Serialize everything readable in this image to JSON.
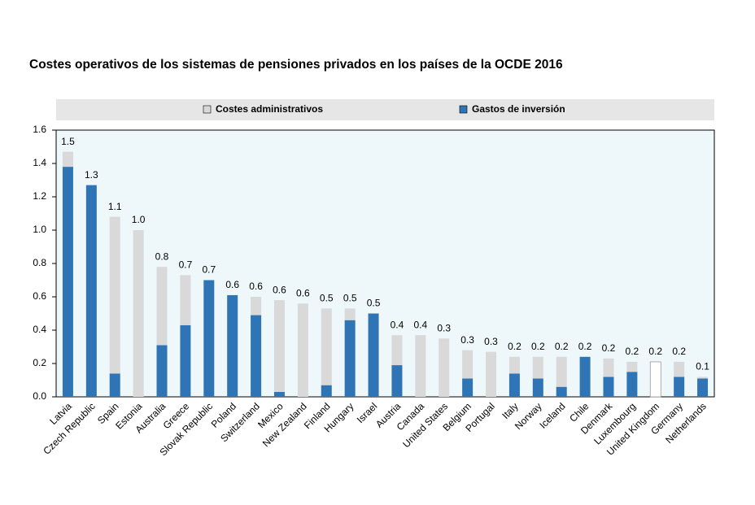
{
  "chart_data": {
    "type": "bar",
    "stacked": true,
    "title": "Costes operativos de los sistemas de pensiones privados en los países de la OCDE 2016",
    "categories": [
      "Latvia",
      "Czech Republic",
      "Spain",
      "Estonia",
      "Australia",
      "Greece",
      "Slovak Republic",
      "Poland",
      "Switzerland",
      "Mexico",
      "New Zealand",
      "Finland",
      "Hungary",
      "Israel",
      "Austria",
      "Canada",
      "United States",
      "Belgium",
      "Portugal",
      "Italy",
      "Norway",
      "Iceland",
      "Chile",
      "Denmark",
      "Luxembourg",
      "United Kingdom",
      "Germany",
      "Netherlands"
    ],
    "series": [
      {
        "name": "Gastos de inversión",
        "color": "#2f75b5",
        "values": [
          1.38,
          1.27,
          0.14,
          null,
          0.31,
          0.43,
          0.7,
          0.61,
          0.49,
          0.03,
          null,
          0.07,
          0.46,
          0.5,
          0.19,
          null,
          null,
          0.11,
          null,
          0.14,
          0.11,
          0.06,
          0.24,
          0.12,
          0.15,
          null,
          0.12,
          0.11
        ]
      },
      {
        "name": "Costes administrativos",
        "color": "#d9d9d9",
        "values": [
          0.09,
          null,
          0.94,
          1.0,
          0.47,
          0.3,
          null,
          null,
          0.11,
          0.55,
          0.56,
          0.46,
          0.07,
          null,
          0.18,
          0.37,
          0.35,
          0.17,
          0.27,
          0.1,
          0.13,
          0.18,
          null,
          0.11,
          0.06,
          null,
          0.09,
          0.01
        ]
      },
      {
        "name": null,
        "color": "#ffffff",
        "values": [
          null,
          null,
          null,
          null,
          null,
          null,
          null,
          null,
          null,
          null,
          null,
          null,
          null,
          null,
          null,
          null,
          null,
          null,
          null,
          null,
          null,
          null,
          null,
          null,
          null,
          0.21,
          null,
          null
        ]
      }
    ],
    "total_labels": [
      "1.5",
      "1.3",
      "1.1",
      "1.0",
      "0.8",
      "0.7",
      "0.7",
      "0.6",
      "0.6",
      "0.6",
      "0.6",
      "0.5",
      "0.5",
      "0.5",
      "0.4",
      "0.4",
      "0.3",
      "0.3",
      "0.3",
      "0.2",
      "0.2",
      "0.2",
      "0.2",
      "0.2",
      "0.2",
      "0.2",
      "0.2",
      "0.1"
    ],
    "ylim": [
      0,
      1.6
    ],
    "yticks": [
      {
        "value": 0,
        "label": "0.0"
      },
      0.2,
      0.4,
      0.6,
      0.8,
      {
        "value": 1,
        "label": "1.0"
      },
      1.2,
      1.4,
      1.6
    ],
    "legend_position": "top"
  }
}
